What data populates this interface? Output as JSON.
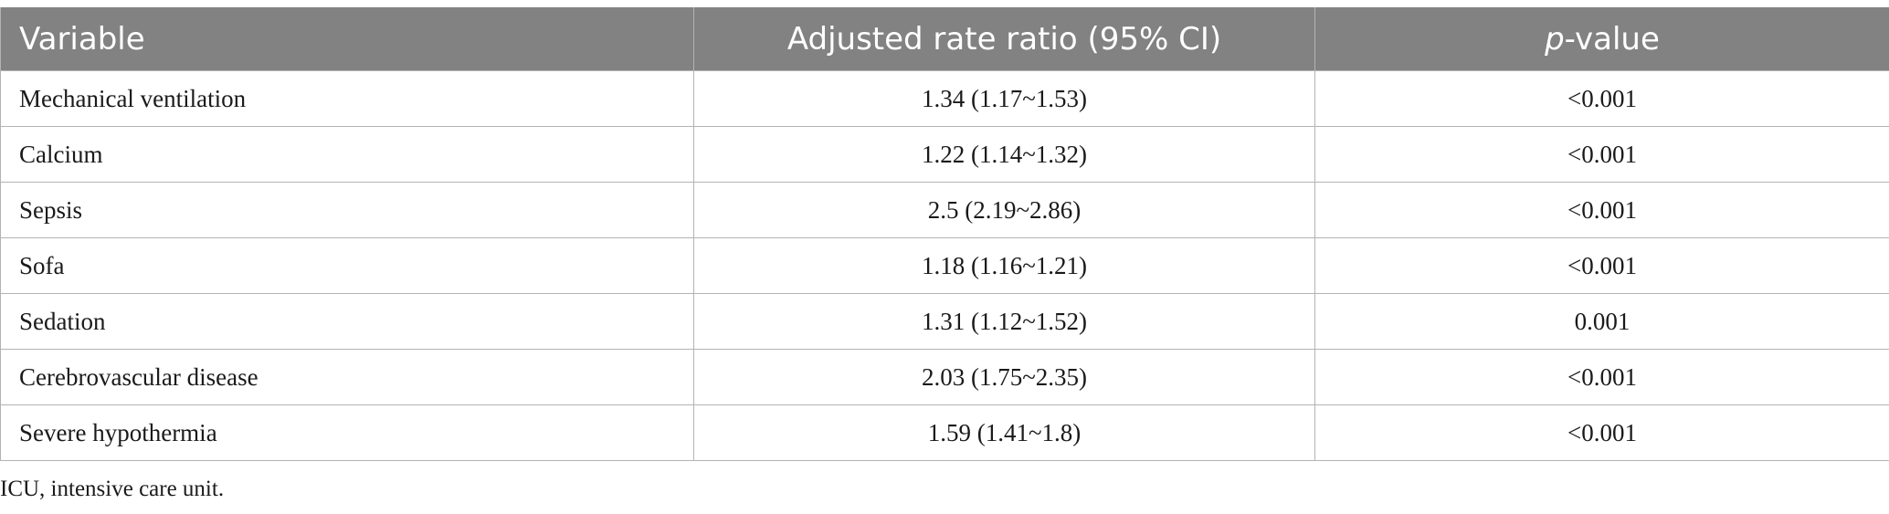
{
  "table": {
    "headers": {
      "variable": "Variable",
      "rate_ratio": "Adjusted rate ratio (95% CI)",
      "p_value_italic": "p",
      "p_value_rest": "-value"
    },
    "rows": [
      {
        "variable": "Mechanical ventilation",
        "rate_ratio": "1.34 (1.17~1.53)",
        "p_value": "<0.001"
      },
      {
        "variable": "Calcium",
        "rate_ratio": "1.22 (1.14~1.32)",
        "p_value": "<0.001"
      },
      {
        "variable": "Sepsis",
        "rate_ratio": "2.5 (2.19~2.86)",
        "p_value": "<0.001"
      },
      {
        "variable": "Sofa",
        "rate_ratio": "1.18 (1.16~1.21)",
        "p_value": "<0.001"
      },
      {
        "variable": "Sedation",
        "rate_ratio": "1.31 (1.12~1.52)",
        "p_value": "0.001"
      },
      {
        "variable": "Cerebrovascular disease",
        "rate_ratio": "2.03 (1.75~2.35)",
        "p_value": "<0.001"
      },
      {
        "variable": "Severe hypothermia",
        "rate_ratio": "1.59 (1.41~1.8)",
        "p_value": "<0.001"
      }
    ]
  },
  "footnote": "ICU, intensive care unit.",
  "colors": {
    "header_bg": "#828282",
    "header_text": "#ffffff",
    "border": "#b3b3b3"
  }
}
